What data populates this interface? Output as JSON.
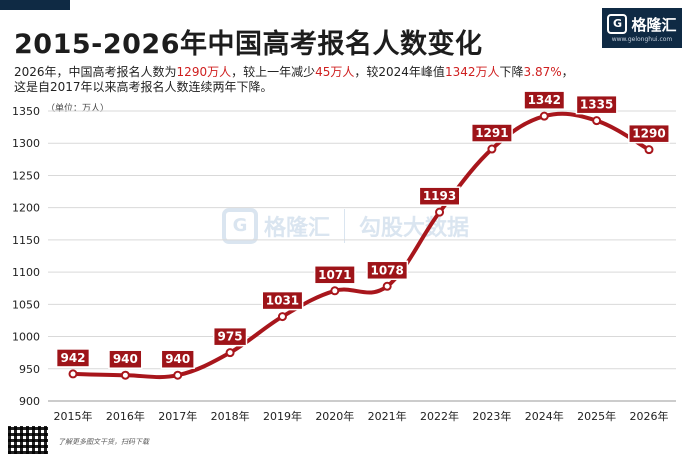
{
  "title": "2015-2026年中国高考报名人数变化",
  "logo": {
    "mark": "G",
    "name": "格隆汇",
    "url": "www.gelonghui.com"
  },
  "subtitle": {
    "l1_a": "2026年，中国高考报名人数为",
    "l1_b": "1290万人",
    "l1_c": "，较上一年减少",
    "l1_d": "45万人",
    "l1_e": "，较2024年峰值",
    "l1_f": "1342万人",
    "l1_g": "下降",
    "l1_h": "3.87%",
    "l1_i": "，",
    "line2": "这是自2017年以来高考报名人数连续两年下降。"
  },
  "unit_label": "（单位：万人）",
  "watermark": {
    "mark": "G",
    "left": "格隆汇",
    "right": "勾股大数据"
  },
  "footer": {
    "text": "了解更多图文干货，扫码下载"
  },
  "colors": {
    "line": "#a8161c",
    "label_bg": "#9e1419",
    "grid": "#d9d9d9"
  },
  "chart_data": {
    "type": "line",
    "title": "2015-2026年中国高考报名人数变化",
    "xlabel": "",
    "ylabel": "（单位：万人）",
    "categories": [
      "2015年",
      "2016年",
      "2017年",
      "2018年",
      "2019年",
      "2020年",
      "2021年",
      "2022年",
      "2023年",
      "2024年",
      "2025年",
      "2026年"
    ],
    "series": [
      {
        "values": [
          942,
          940,
          940,
          975,
          1031,
          1071,
          1078,
          1193,
          1291,
          1342,
          1335,
          1290
        ]
      }
    ],
    "data_labels": [
      "942",
      "940",
      "940",
      "975",
      "1031",
      "1071",
      "1078",
      "1193",
      "1291",
      "1342",
      "1335",
      "1290"
    ],
    "yticks": [
      900,
      950,
      1000,
      1050,
      1100,
      1150,
      1200,
      1250,
      1300,
      1350
    ],
    "ylim": [
      900,
      1350
    ],
    "grid": true,
    "legend": "none"
  }
}
